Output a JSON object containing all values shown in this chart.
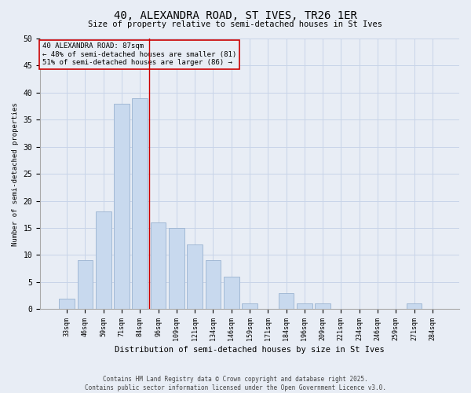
{
  "title1": "40, ALEXANDRA ROAD, ST IVES, TR26 1ER",
  "title2": "Size of property relative to semi-detached houses in St Ives",
  "xlabel": "Distribution of semi-detached houses by size in St Ives",
  "ylabel": "Number of semi-detached properties",
  "categories": [
    "33sqm",
    "46sqm",
    "59sqm",
    "71sqm",
    "84sqm",
    "96sqm",
    "109sqm",
    "121sqm",
    "134sqm",
    "146sqm",
    "159sqm",
    "171sqm",
    "184sqm",
    "196sqm",
    "209sqm",
    "221sqm",
    "234sqm",
    "246sqm",
    "259sqm",
    "271sqm",
    "284sqm"
  ],
  "values": [
    2,
    9,
    18,
    38,
    39,
    16,
    15,
    12,
    9,
    6,
    1,
    0,
    3,
    1,
    1,
    0,
    0,
    0,
    0,
    1,
    0
  ],
  "bar_color": "#c8d9ee",
  "bar_edge_color": "#9ab3d0",
  "vline_x": 4.5,
  "vline_color": "#cc0000",
  "annotation_title": "40 ALEXANDRA ROAD: 87sqm",
  "annotation_line1": "← 48% of semi-detached houses are smaller (81)",
  "annotation_line2": "51% of semi-detached houses are larger (86) →",
  "annotation_box_color": "#cc0000",
  "ylim": [
    0,
    50
  ],
  "yticks": [
    0,
    5,
    10,
    15,
    20,
    25,
    30,
    35,
    40,
    45,
    50
  ],
  "grid_color": "#c8d4e8",
  "bg_color": "#e8edf5",
  "footer1": "Contains HM Land Registry data © Crown copyright and database right 2025.",
  "footer2": "Contains public sector information licensed under the Open Government Licence v3.0."
}
